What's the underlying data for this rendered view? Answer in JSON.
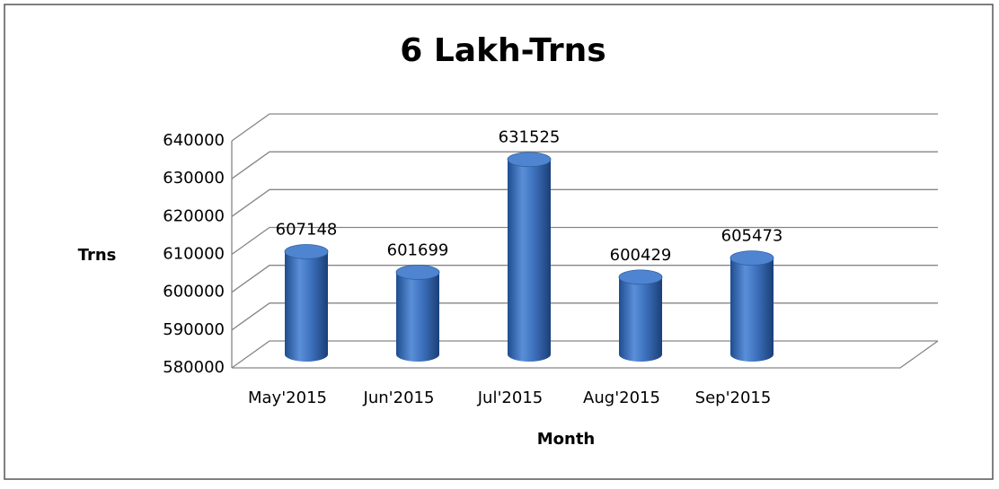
{
  "chart_data": {
    "type": "bar3d",
    "title": "6 Lakh-Trns",
    "x_label": "Month",
    "y_label": "Trns",
    "categories": [
      "May'2015",
      "Jun'2015",
      "Jul'2015",
      "Aug'2015",
      "Sep'2015",
      null
    ],
    "values": [
      607148,
      601699,
      631525,
      600429,
      605473,
      null
    ],
    "color": "#3a6fba",
    "ylim": [
      580000,
      640000
    ],
    "yticks": [
      580000,
      590000,
      600000,
      610000,
      620000,
      630000,
      640000
    ],
    "grid": true
  }
}
